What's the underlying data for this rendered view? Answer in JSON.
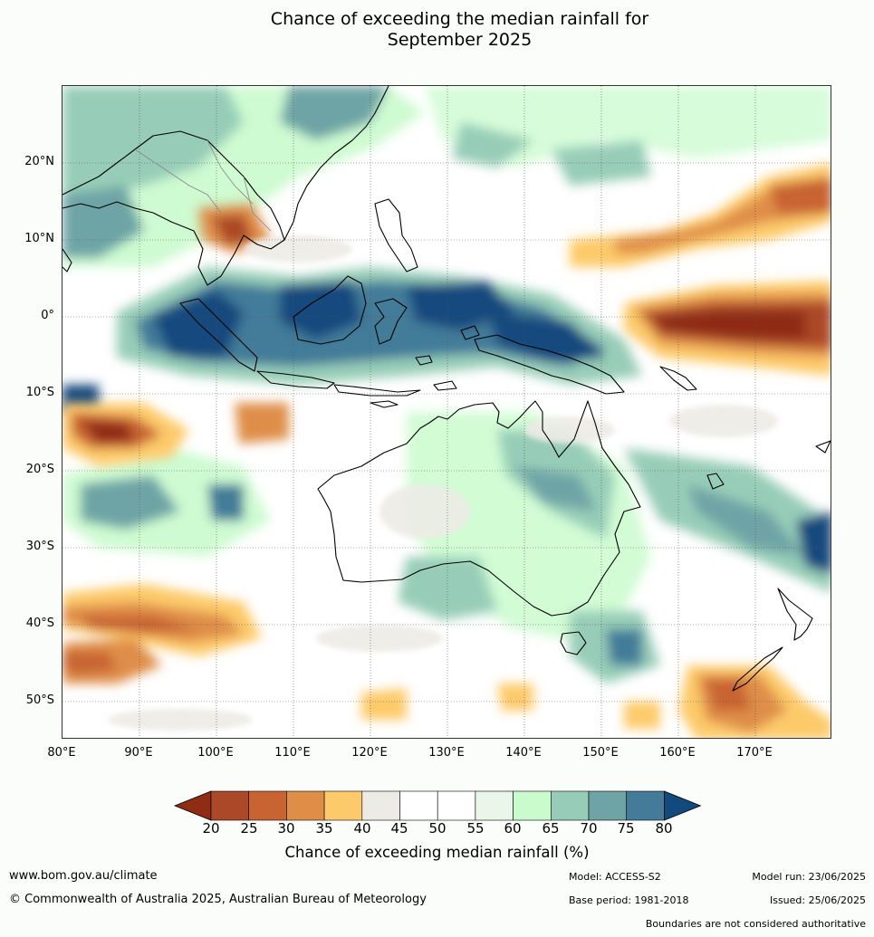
{
  "title_line1": "Chance of exceeding the median rainfall for",
  "title_line2": "September 2025",
  "lat_ticks": [
    "20°N",
    "10°N",
    "0°",
    "10°S",
    "20°S",
    "30°S",
    "40°S",
    "50°S"
  ],
  "lon_ticks": [
    "80°E",
    "90°E",
    "100°E",
    "110°E",
    "120°E",
    "130°E",
    "140°E",
    "150°E",
    "160°E",
    "170°E"
  ],
  "map_extent": {
    "lon": [
      80,
      180
    ],
    "lat": [
      -55,
      30
    ]
  },
  "colorbar": {
    "labels": [
      "20",
      "25",
      "30",
      "35",
      "40",
      "45",
      "50",
      "55",
      "60",
      "65",
      "70",
      "75",
      "80"
    ],
    "colors": [
      "#8e2c14",
      "#ab4827",
      "#c86431",
      "#df8e48",
      "#fdca6b",
      "#edebe6",
      "#ffffff",
      "#ffffff",
      "#e9f6e9",
      "#c9fbcc",
      "#97cdb8",
      "#6ea4a6",
      "#437b99",
      "#124a7e"
    ],
    "title": "Chance of exceeding median rainfall (%)"
  },
  "footer": {
    "website": "www.bom.gov.au/climate",
    "copyright": "© Commonwealth of Australia 2025, Australian Bureau of Meteorology",
    "model": "Model: ACCESS-S2",
    "model_run": "Model run: 23/06/2025",
    "base_period": "Base period: 1981-2018",
    "issued": "Issued: 25/06/2025",
    "disclaimer": "Boundaries are not considered authoritative"
  }
}
